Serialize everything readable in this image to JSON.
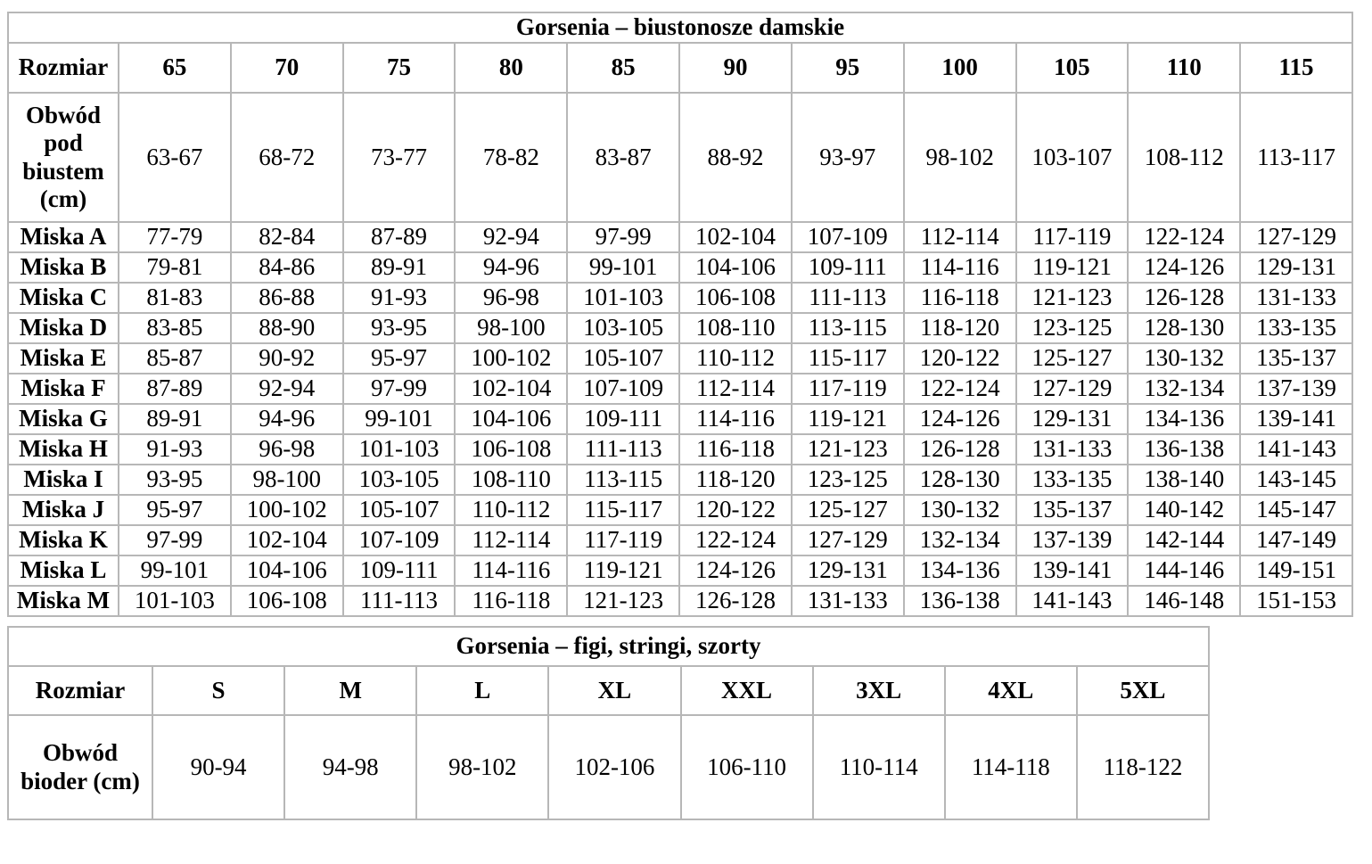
{
  "page": {
    "background": "#ffffff",
    "text_color": "#000000",
    "border_color": "#b7b7b7"
  },
  "chart_data": [
    {
      "type": "table",
      "title": "Gorsenia – biustonosze damskie",
      "corner_label": "Rozmiar",
      "columns": [
        "65",
        "70",
        "75",
        "80",
        "85",
        "90",
        "95",
        "100",
        "105",
        "110",
        "115"
      ],
      "rows": [
        {
          "label": "Obwód pod biustem (cm)",
          "values": [
            "63-67",
            "68-72",
            "73-77",
            "78-82",
            "83-87",
            "88-92",
            "93-97",
            "98-102",
            "103-107",
            "108-112",
            "113-117"
          ]
        },
        {
          "label": "Miska A",
          "values": [
            "77-79",
            "82-84",
            "87-89",
            "92-94",
            "97-99",
            "102-104",
            "107-109",
            "112-114",
            "117-119",
            "122-124",
            "127-129"
          ]
        },
        {
          "label": "Miska B",
          "values": [
            "79-81",
            "84-86",
            "89-91",
            "94-96",
            "99-101",
            "104-106",
            "109-111",
            "114-116",
            "119-121",
            "124-126",
            "129-131"
          ]
        },
        {
          "label": "Miska C",
          "values": [
            "81-83",
            "86-88",
            "91-93",
            "96-98",
            "101-103",
            "106-108",
            "111-113",
            "116-118",
            "121-123",
            "126-128",
            "131-133"
          ]
        },
        {
          "label": "Miska D",
          "values": [
            "83-85",
            "88-90",
            "93-95",
            "98-100",
            "103-105",
            "108-110",
            "113-115",
            "118-120",
            "123-125",
            "128-130",
            "133-135"
          ]
        },
        {
          "label": "Miska E",
          "values": [
            "85-87",
            "90-92",
            "95-97",
            "100-102",
            "105-107",
            "110-112",
            "115-117",
            "120-122",
            "125-127",
            "130-132",
            "135-137"
          ]
        },
        {
          "label": "Miska F",
          "values": [
            "87-89",
            "92-94",
            "97-99",
            "102-104",
            "107-109",
            "112-114",
            "117-119",
            "122-124",
            "127-129",
            "132-134",
            "137-139"
          ]
        },
        {
          "label": "Miska G",
          "values": [
            "89-91",
            "94-96",
            "99-101",
            "104-106",
            "109-111",
            "114-116",
            "119-121",
            "124-126",
            "129-131",
            "134-136",
            "139-141"
          ]
        },
        {
          "label": "Miska H",
          "values": [
            "91-93",
            "96-98",
            "101-103",
            "106-108",
            "111-113",
            "116-118",
            "121-123",
            "126-128",
            "131-133",
            "136-138",
            "141-143"
          ]
        },
        {
          "label": "Miska I",
          "values": [
            "93-95",
            "98-100",
            "103-105",
            "108-110",
            "113-115",
            "118-120",
            "123-125",
            "128-130",
            "133-135",
            "138-140",
            "143-145"
          ]
        },
        {
          "label": "Miska J",
          "values": [
            "95-97",
            "100-102",
            "105-107",
            "110-112",
            "115-117",
            "120-122",
            "125-127",
            "130-132",
            "135-137",
            "140-142",
            "145-147"
          ]
        },
        {
          "label": "Miska K",
          "values": [
            "97-99",
            "102-104",
            "107-109",
            "112-114",
            "117-119",
            "122-124",
            "127-129",
            "132-134",
            "137-139",
            "142-144",
            "147-149"
          ]
        },
        {
          "label": "Miska L",
          "values": [
            "99-101",
            "104-106",
            "109-111",
            "114-116",
            "119-121",
            "124-126",
            "129-131",
            "134-136",
            "139-141",
            "144-146",
            "149-151"
          ]
        },
        {
          "label": "Miska M",
          "values": [
            "101-103",
            "106-108",
            "111-113",
            "116-118",
            "121-123",
            "126-128",
            "131-133",
            "136-138",
            "141-143",
            "146-148",
            "151-153"
          ]
        }
      ]
    },
    {
      "type": "table",
      "title": "Gorsenia – figi, stringi, szorty",
      "corner_label": "Rozmiar",
      "columns": [
        "S",
        "M",
        "L",
        "XL",
        "XXL",
        "3XL",
        "4XL",
        "5XL"
      ],
      "rows": [
        {
          "label": "Obwód bioder (cm)",
          "values": [
            "90-94",
            "94-98",
            "98-102",
            "102-106",
            "106-110",
            "110-114",
            "114-118",
            "118-122"
          ]
        }
      ]
    }
  ]
}
